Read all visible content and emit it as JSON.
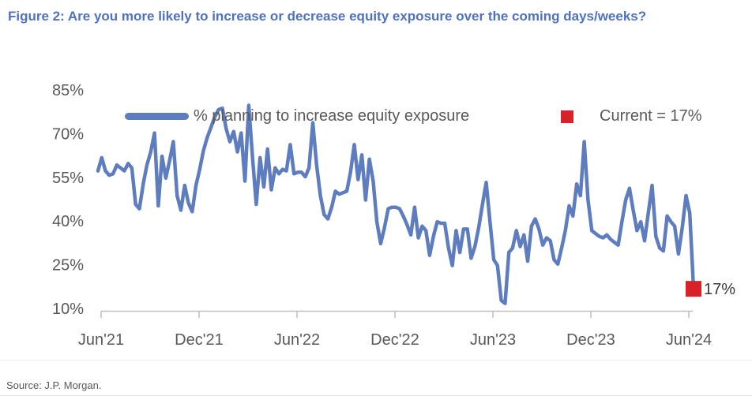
{
  "header": {
    "title": "Figure 2: Are you more likely to increase or decrease equity exposure over the coming days/weeks?"
  },
  "legend": {
    "series_label": "% planning to increase equity exposure",
    "current_label": "Current = 17%"
  },
  "annotation": {
    "current_value_label": "17%"
  },
  "footer": {
    "source": "Source: J.P. Morgan."
  },
  "colors": {
    "title_blue": "#4F72BE",
    "line_blue": "#5E7DBE",
    "marker_red": "#D7222A",
    "axis_text_gray": "#595959",
    "axis_line_gray": "#BFBFBF",
    "annotation_text": "#3A3A3A"
  },
  "chart_data": {
    "type": "line",
    "title": "Figure 2: Are you more likely to increase or decrease equity exposure over the coming days/weeks?",
    "xlabel": "",
    "ylabel": "% planning to increase equity exposure",
    "ylim": [
      10,
      85
    ],
    "yticks": [
      85,
      70,
      55,
      40,
      25,
      10
    ],
    "ytick_labels": [
      "85%",
      "70%",
      "55%",
      "40%",
      "25%",
      "10%"
    ],
    "xtick_labels": [
      "Jun'21",
      "Dec'21",
      "Jun'22",
      "Dec'22",
      "Jun'23",
      "Dec'23",
      "Jun'24"
    ],
    "x_cadence": "weekly, Jun 2021 through Jun 2024",
    "grid": false,
    "legend_position": "top",
    "series": [
      {
        "name": "% planning to increase equity exposure",
        "values": [
          57.5,
          62,
          57.5,
          56,
          56.5,
          59.5,
          58.5,
          57.5,
          60,
          58.5,
          46,
          44.5,
          53,
          59.5,
          64,
          70.5,
          45.5,
          62.5,
          55,
          61,
          67.5,
          49,
          44,
          52.5,
          46.5,
          43.5,
          52.5,
          58,
          64.5,
          69,
          72.5,
          76,
          78.5,
          79,
          72,
          67.5,
          71,
          64,
          70.5,
          54,
          80,
          62,
          46,
          62,
          52,
          65,
          51,
          58.5,
          56.5,
          58,
          57.5,
          66.5,
          56.5,
          57,
          57,
          55.5,
          58.5,
          74,
          59.5,
          49,
          42.5,
          41,
          45,
          50.5,
          49.5,
          50,
          50.5,
          57,
          66.5,
          54.5,
          63,
          47.5,
          61.5,
          54,
          40,
          32.5,
          38,
          44.5,
          45,
          45,
          44.5,
          42,
          39,
          35.5,
          45,
          34.5,
          38.5,
          37,
          28.5,
          35,
          40,
          39.5,
          39.5,
          31,
          25,
          37,
          29.5,
          37.5,
          37.5,
          27.5,
          31.5,
          38,
          46,
          53.5,
          40,
          27,
          25,
          13,
          12,
          29.5,
          31,
          37,
          31.5,
          35.5,
          26.5,
          38.5,
          41,
          37.5,
          32,
          34.5,
          33.5,
          27,
          25.5,
          31,
          37,
          45.5,
          42,
          53,
          49,
          67.5,
          47.5,
          37,
          36,
          35,
          34.5,
          35.5,
          34,
          33,
          32,
          40,
          47.5,
          51.5,
          44,
          37,
          40,
          33.5,
          43,
          52.5,
          35,
          31,
          30,
          42,
          40,
          38.5,
          29,
          38,
          49,
          43,
          17
        ]
      }
    ],
    "current_point": {
      "value": 17,
      "label": "17%",
      "marker": "red-square"
    }
  }
}
